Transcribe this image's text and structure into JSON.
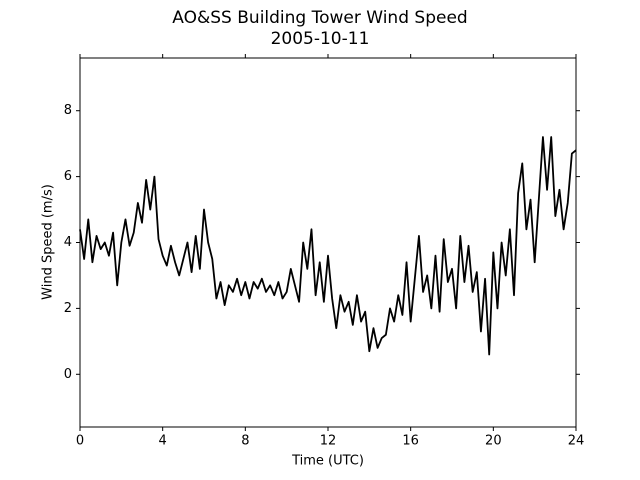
{
  "chart_data": {
    "type": "line",
    "title": "AO&SS Building Tower Wind Speed",
    "subtitle": "2005-10-11",
    "xlabel": "Time (UTC)",
    "ylabel": "Wind Speed (m/s)",
    "x": [
      0.0,
      0.2,
      0.4,
      0.6,
      0.8,
      1.0,
      1.2,
      1.4,
      1.6,
      1.8,
      2.0,
      2.2,
      2.4,
      2.6,
      2.8,
      3.0,
      3.2,
      3.4,
      3.6,
      3.8,
      4.0,
      4.2,
      4.4,
      4.6,
      4.8,
      5.0,
      5.2,
      5.4,
      5.6,
      5.8,
      6.0,
      6.2,
      6.4,
      6.6,
      6.8,
      7.0,
      7.2,
      7.4,
      7.6,
      7.8,
      8.0,
      8.2,
      8.4,
      8.6,
      8.8,
      9.0,
      9.2,
      9.4,
      9.6,
      9.8,
      10.0,
      10.2,
      10.4,
      10.6,
      10.8,
      11.0,
      11.2,
      11.4,
      11.6,
      11.8,
      12.0,
      12.2,
      12.4,
      12.6,
      12.8,
      13.0,
      13.2,
      13.4,
      13.6,
      13.8,
      14.0,
      14.2,
      14.4,
      14.6,
      14.8,
      15.0,
      15.2,
      15.4,
      15.6,
      15.8,
      16.0,
      16.2,
      16.4,
      16.6,
      16.8,
      17.0,
      17.2,
      17.4,
      17.6,
      17.8,
      18.0,
      18.2,
      18.4,
      18.6,
      18.8,
      19.0,
      19.2,
      19.4,
      19.6,
      19.8,
      20.0,
      20.2,
      20.4,
      20.6,
      20.8,
      21.0,
      21.2,
      21.4,
      21.6,
      21.8,
      22.0,
      22.2,
      22.4,
      22.6,
      22.8,
      23.0,
      23.2,
      23.4,
      23.6,
      23.8,
      24.0
    ],
    "series": [
      {
        "color": "#000000",
        "values": [
          4.4,
          3.5,
          4.7,
          3.4,
          4.2,
          3.8,
          4.0,
          3.6,
          4.3,
          2.7,
          4.0,
          4.7,
          3.9,
          4.3,
          5.2,
          4.6,
          5.9,
          5.0,
          6.0,
          4.1,
          3.6,
          3.3,
          3.9,
          3.4,
          3.0,
          3.5,
          4.0,
          3.1,
          4.2,
          3.2,
          5.0,
          4.0,
          3.5,
          2.3,
          2.8,
          2.1,
          2.7,
          2.5,
          2.9,
          2.4,
          2.8,
          2.3,
          2.8,
          2.6,
          2.9,
          2.5,
          2.7,
          2.4,
          2.8,
          2.3,
          2.5,
          3.2,
          2.7,
          2.2,
          4.0,
          3.2,
          4.4,
          2.4,
          3.4,
          2.2,
          3.6,
          2.3,
          1.4,
          2.4,
          1.9,
          2.2,
          1.5,
          2.4,
          1.6,
          1.9,
          0.7,
          1.4,
          0.8,
          1.1,
          1.2,
          2.0,
          1.6,
          2.4,
          1.8,
          3.4,
          1.6,
          2.9,
          4.2,
          2.5,
          3.0,
          2.0,
          3.6,
          1.9,
          4.1,
          2.8,
          3.2,
          2.0,
          4.2,
          2.8,
          3.9,
          2.5,
          3.1,
          1.3,
          2.9,
          0.6,
          3.7,
          2.0,
          4.0,
          3.0,
          4.4,
          2.4,
          5.5,
          6.4,
          4.4,
          5.3,
          3.4,
          5.3,
          7.2,
          5.6,
          7.2,
          4.8,
          5.6,
          4.4,
          5.2,
          6.7,
          6.8
        ]
      }
    ],
    "xlim": [
      0,
      24
    ],
    "ylim": [
      -1.6,
      9.6
    ],
    "xticks": [
      0,
      4,
      8,
      12,
      16,
      20,
      24
    ],
    "yticks": [
      0,
      2,
      4,
      6,
      8
    ]
  }
}
